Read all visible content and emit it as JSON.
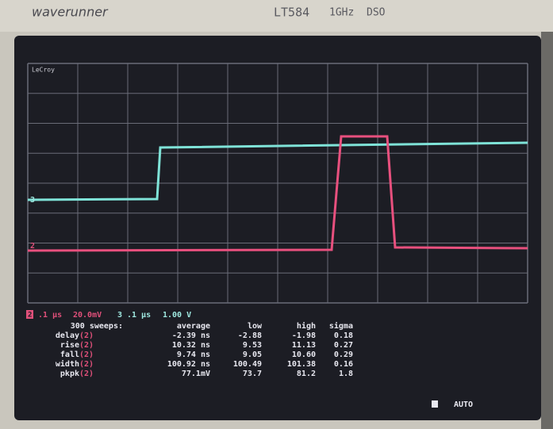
{
  "header": {
    "brand": "waverunner",
    "model": "LT584",
    "bandwidth": "1GHz",
    "kind": "DSO",
    "logo": "LeCroy"
  },
  "markers": {
    "trace_3": "3",
    "trace_2": "2"
  },
  "channels": [
    {
      "id": "2",
      "timebase": ".1 µs",
      "scale": "20.0mV"
    },
    {
      "id": "3",
      "timebase": ".1 µs",
      "scale": "1.00 V"
    }
  ],
  "table": {
    "header": [
      "300 sweeps:",
      "average",
      "low",
      "high",
      "sigma"
    ],
    "rows": [
      {
        "name": "delay",
        "channel": "(2)",
        "cells": [
          "-2.39 ns",
          "-2.88",
          "-1.98",
          "0.18"
        ]
      },
      {
        "name": "rise",
        "channel": "(2)",
        "cells": [
          "10.32 ns",
          "9.53",
          "11.13",
          "0.27"
        ]
      },
      {
        "name": "fall",
        "channel": "(2)",
        "cells": [
          "9.74 ns",
          "9.05",
          "10.60",
          "0.29"
        ]
      },
      {
        "name": "width",
        "channel": "(2)",
        "cells": [
          "100.92 ns",
          "100.49",
          "101.38",
          "0.16"
        ]
      },
      {
        "name": "pkpk",
        "channel": "(2)",
        "cells": [
          "77.1mV",
          "73.7",
          "81.2",
          "1.8"
        ]
      }
    ]
  },
  "status": "AUTO"
}
